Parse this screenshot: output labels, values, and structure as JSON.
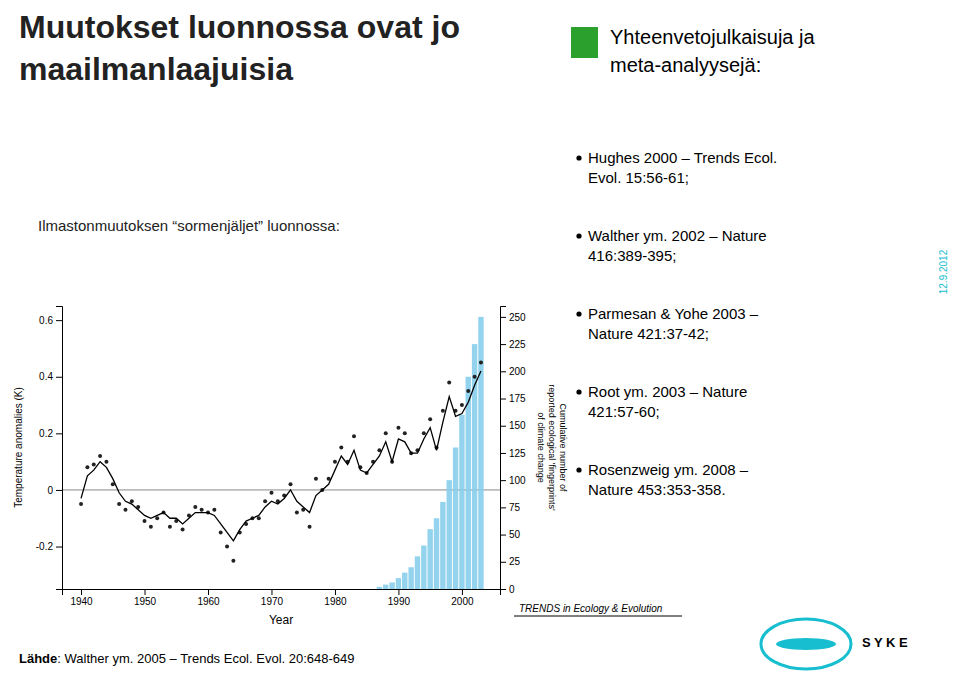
{
  "chart_data": {
    "type": "combo",
    "title": "Muutokset luonnossa ovat jo\nmaailmanlaajuisia",
    "subtitle": "Ilmastonmuutoksen “sormenjäljet” luonnossa:",
    "annotations": [
      "Yhteenvetojulkaisuja ja\nmeta-analyysejä:",
      "Hughes 2000 – Trends Ecol.\nEvol. 15:56-61;",
      "Walther ym. 2002 – Nature\n416:389-395;",
      "Parmesan & Yohe 2003 –\nNature 421:37-42;",
      "Root ym. 2003 – Nature\n421:57-60;",
      "Rosenzweig ym. 2008 –\nNature 453:353-358.",
      "12.9.2012",
      "Lähde",
      ": Walther ym. 2005 – Trends Ecol. Evol. 20:648-649",
      "TRENDS in Ecology & Evolution",
      "S Y K E"
    ],
    "xlabel": "Year",
    "ylabel": "Temperature anomalies (K)",
    "y2label": "Cumulative number of\nreported ecological 'fingerprints'\nof climate change",
    "xlim": [
      1937,
      2006
    ],
    "xticks": [
      1940,
      1950,
      1960,
      1970,
      1980,
      1990,
      2000
    ],
    "ylim": [
      -0.35,
      0.65
    ],
    "yticks": [
      -0.2,
      0,
      0.2,
      0.4,
      0.6
    ],
    "y2lim": [
      0,
      260
    ],
    "y2ticks": [
      0,
      25,
      50,
      75,
      100,
      125,
      150,
      175,
      200,
      225,
      250
    ],
    "series": [
      {
        "type": "bar",
        "axis": "y2",
        "color": "#87ceeb",
        "x": [
          1987,
          1988,
          1989,
          1990,
          1991,
          1992,
          1993,
          1994,
          1995,
          1996,
          1997,
          1998,
          1999,
          2000,
          2001,
          2002,
          2003
        ],
        "values": [
          2,
          4,
          6,
          10,
          15,
          20,
          30,
          40,
          55,
          65,
          80,
          100,
          130,
          160,
          195,
          225,
          250
        ]
      },
      {
        "type": "scatter",
        "color": "#222222",
        "x": [
          1940,
          1941,
          1942,
          1943,
          1944,
          1945,
          1946,
          1947,
          1948,
          1949,
          1950,
          1951,
          1952,
          1953,
          1954,
          1955,
          1956,
          1957,
          1958,
          1959,
          1960,
          1961,
          1962,
          1963,
          1964,
          1965,
          1966,
          1967,
          1968,
          1969,
          1970,
          1971,
          1972,
          1973,
          1974,
          1975,
          1976,
          1977,
          1978,
          1979,
          1980,
          1981,
          1982,
          1983,
          1984,
          1985,
          1986,
          1987,
          1988,
          1989,
          1990,
          1991,
          1992,
          1993,
          1994,
          1995,
          1996,
          1997,
          1998,
          1999,
          2000,
          2001,
          2002,
          2003
        ],
        "values": [
          -0.05,
          0.08,
          0.09,
          0.12,
          0.1,
          0.02,
          -0.05,
          -0.07,
          -0.04,
          -0.06,
          -0.11,
          -0.13,
          -0.1,
          -0.08,
          -0.13,
          -0.11,
          -0.14,
          -0.09,
          -0.06,
          -0.07,
          -0.08,
          -0.07,
          -0.15,
          -0.2,
          -0.25,
          -0.15,
          -0.12,
          -0.1,
          -0.1,
          -0.04,
          -0.01,
          -0.04,
          -0.02,
          0.02,
          -0.08,
          -0.07,
          -0.13,
          0.04,
          0.0,
          0.04,
          0.1,
          0.15,
          0.1,
          0.19,
          0.08,
          0.06,
          0.1,
          0.14,
          0.2,
          0.1,
          0.22,
          0.2,
          0.13,
          0.14,
          0.2,
          0.25,
          0.15,
          0.28,
          0.38,
          0.28,
          0.3,
          0.35,
          0.4,
          0.45
        ]
      },
      {
        "type": "line",
        "color": "#000000",
        "x": [
          1940,
          1941,
          1942,
          1943,
          1944,
          1945,
          1946,
          1947,
          1948,
          1949,
          1950,
          1951,
          1952,
          1953,
          1954,
          1955,
          1956,
          1957,
          1958,
          1959,
          1960,
          1961,
          1962,
          1963,
          1964,
          1965,
          1966,
          1967,
          1968,
          1969,
          1970,
          1971,
          1972,
          1973,
          1974,
          1975,
          1976,
          1977,
          1978,
          1979,
          1980,
          1981,
          1982,
          1983,
          1984,
          1985,
          1986,
          1987,
          1988,
          1989,
          1990,
          1991,
          1992,
          1993,
          1994,
          1995,
          1996,
          1997,
          1998,
          1999,
          2000,
          2001,
          2002,
          2003
        ],
        "values": [
          -0.03,
          0.05,
          0.07,
          0.1,
          0.08,
          0.04,
          -0.01,
          -0.04,
          -0.05,
          -0.07,
          -0.09,
          -0.1,
          -0.09,
          -0.08,
          -0.1,
          -0.1,
          -0.12,
          -0.1,
          -0.08,
          -0.08,
          -0.08,
          -0.09,
          -0.12,
          -0.15,
          -0.18,
          -0.14,
          -0.11,
          -0.1,
          -0.09,
          -0.06,
          -0.04,
          -0.05,
          -0.03,
          0.0,
          -0.04,
          -0.06,
          -0.08,
          -0.02,
          0.0,
          0.02,
          0.07,
          0.12,
          0.09,
          0.14,
          0.07,
          0.06,
          0.09,
          0.12,
          0.17,
          0.1,
          0.18,
          0.17,
          0.13,
          0.13,
          0.18,
          0.22,
          0.14,
          0.24,
          0.33,
          0.26,
          0.27,
          0.31,
          0.37,
          0.42
        ]
      }
    ]
  }
}
